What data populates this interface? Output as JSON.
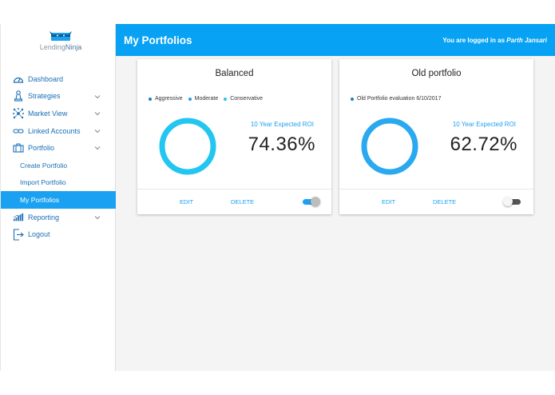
{
  "logo": {
    "text_light": "Lending",
    "text_bold": "Ninja"
  },
  "sidebar": {
    "items": [
      {
        "label": "Dashboard",
        "icon": "speedometer-icon",
        "has_chevron": false
      },
      {
        "label": "Strategies",
        "icon": "chess-icon",
        "has_chevron": true
      },
      {
        "label": "Market View",
        "icon": "network-icon",
        "has_chevron": true
      },
      {
        "label": "Linked Accounts",
        "icon": "link-icon",
        "has_chevron": true
      },
      {
        "label": "Portfolio",
        "icon": "briefcase-icon",
        "has_chevron": true
      },
      {
        "label": "Reporting",
        "icon": "bar-chart-icon",
        "has_chevron": true
      },
      {
        "label": "Logout",
        "icon": "logout-icon",
        "has_chevron": false
      }
    ],
    "portfolio_sub": [
      {
        "label": "Create Portfolio",
        "active": false
      },
      {
        "label": "Import Portfolio",
        "active": false
      },
      {
        "label": "My Portfolios",
        "active": true
      }
    ]
  },
  "header": {
    "title": "My Portfolios",
    "user_prefix": "You are logged in as",
    "user_name": "Parth Jansari"
  },
  "cards": [
    {
      "title": "Balanced",
      "legend": [
        {
          "label": "Aggressive",
          "color": "#1a7fc4"
        },
        {
          "label": "Moderate",
          "color": "#1ba1f2"
        },
        {
          "label": "Conservative",
          "color": "#22c6f0"
        }
      ],
      "donut_segments": [
        {
          "label": "Aggressive",
          "color": "#1a7fc4",
          "fraction": 0.0
        },
        {
          "label": "Moderate",
          "color": "#1ba1f2",
          "fraction": 0.0
        },
        {
          "label": "Conservative",
          "color": "#22c6f0",
          "fraction": 1.0
        }
      ],
      "roi_label": "10 Year Expected ROI",
      "roi_value": "74.36%",
      "edit_label": "EDIT",
      "delete_label": "DELETE",
      "toggle_on": true
    },
    {
      "title": "Old portfolio",
      "legend": [
        {
          "label": "Old Portfolio evaluation 6/10/2017",
          "color": "#1a7fc4"
        }
      ],
      "donut_segments": [
        {
          "label": "Old Portfolio evaluation 6/10/2017",
          "color": "#2aa9ee",
          "fraction": 1.0
        }
      ],
      "roi_label": "10 Year Expected ROI",
      "roi_value": "62.72%",
      "edit_label": "EDIT",
      "delete_label": "DELETE",
      "toggle_on": false
    }
  ],
  "colors": {
    "accent": "#07a2f4",
    "link": "#1a6fb5",
    "active_item": "#1ba1f2",
    "toggle_on_track": "#1ba1f2",
    "toggle_off_track": "#555555"
  }
}
